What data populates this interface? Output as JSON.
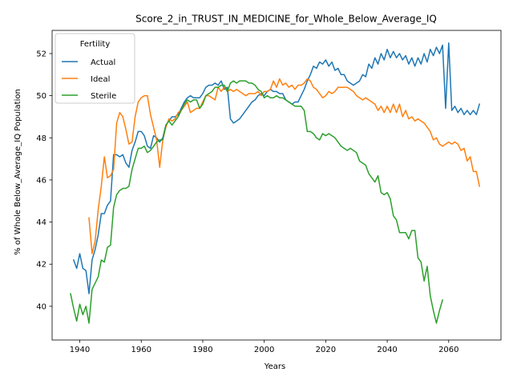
{
  "chart_data": {
    "type": "line",
    "title": "Score_2_in_TRUST_IN_MEDICINE_for_Whole_Below_Average_IQ",
    "xlabel": "Years",
    "ylabel": "% of Whole Below_Average_IQ Population",
    "xlim": [
      1931,
      2077
    ],
    "ylim": [
      38.4,
      53.1
    ],
    "x_ticks": [
      1940,
      1960,
      1980,
      2000,
      2020,
      2040,
      2060
    ],
    "y_ticks": [
      40,
      42,
      44,
      46,
      48,
      50,
      52
    ],
    "grid": false,
    "legend": {
      "title": "Fertility",
      "position": "top-left"
    },
    "series": [
      {
        "name": "Actual",
        "color": "#1f77b4",
        "x": [
          1938,
          1939,
          1940,
          1941,
          1942,
          1943,
          1944,
          1945,
          1946,
          1947,
          1948,
          1949,
          1950,
          1951,
          1952,
          1953,
          1954,
          1955,
          1956,
          1957,
          1958,
          1959,
          1960,
          1961,
          1962,
          1963,
          1964,
          1965,
          1966,
          1967,
          1968,
          1969,
          1970,
          1971,
          1972,
          1973,
          1974,
          1975,
          1976,
          1977,
          1978,
          1979,
          1980,
          1981,
          1982,
          1983,
          1984,
          1985,
          1986,
          1987,
          1988,
          1989,
          1990,
          1991,
          1992,
          1993,
          1994,
          1995,
          1996,
          1997,
          1998,
          1999,
          2000,
          2001,
          2002,
          2003,
          2004,
          2005,
          2006,
          2007,
          2008,
          2009,
          2010,
          2011,
          2012,
          2013,
          2014,
          2015,
          2016,
          2017,
          2018,
          2019,
          2020,
          2021,
          2022,
          2023,
          2024,
          2025,
          2026,
          2027,
          2028,
          2029,
          2030,
          2031,
          2032,
          2033,
          2034,
          2035,
          2036,
          2037,
          2038,
          2039,
          2040,
          2041,
          2042,
          2043,
          2044,
          2045,
          2046,
          2047,
          2048,
          2049,
          2050,
          2051,
          2052,
          2053,
          2054,
          2055,
          2056,
          2057,
          2058,
          2059,
          2060,
          2061,
          2062,
          2063,
          2064,
          2065,
          2066,
          2067,
          2068,
          2069,
          2070
        ],
        "values": [
          42.2,
          41.8,
          42.5,
          41.8,
          41.7,
          40.6,
          42.2,
          42.7,
          43.4,
          44.4,
          44.4,
          44.8,
          45.0,
          47.2,
          47.2,
          47.1,
          47.2,
          46.8,
          46.6,
          47.4,
          47.8,
          48.3,
          48.3,
          48.1,
          47.6,
          47.5,
          48.1,
          48.0,
          47.8,
          48.0,
          48.6,
          48.8,
          49.0,
          49.0,
          49.1,
          49.4,
          49.7,
          49.9,
          50.0,
          49.9,
          49.9,
          49.9,
          50.1,
          50.4,
          50.5,
          50.5,
          50.6,
          50.5,
          50.7,
          50.3,
          50.4,
          48.9,
          48.7,
          48.8,
          48.9,
          49.1,
          49.3,
          49.5,
          49.7,
          49.8,
          50.0,
          50.1,
          50.0,
          50.2,
          50.3,
          50.2,
          50.2,
          50.1,
          50.1,
          49.8,
          49.7,
          49.6,
          49.7,
          49.7,
          50.0,
          50.3,
          50.7,
          51.0,
          51.4,
          51.3,
          51.6,
          51.5,
          51.7,
          51.4,
          51.6,
          51.2,
          51.3,
          51.0,
          51.0,
          50.7,
          50.6,
          50.5,
          50.6,
          50.7,
          51.0,
          50.9,
          51.5,
          51.3,
          51.8,
          51.5,
          52.0,
          51.7,
          52.2,
          51.8,
          52.1,
          51.8,
          52.0,
          51.7,
          51.9,
          51.5,
          51.8,
          51.4,
          51.8,
          51.5,
          52.0,
          51.6,
          52.2,
          51.9,
          52.3,
          52.0,
          52.4,
          49.4,
          52.5,
          49.3,
          49.5,
          49.2,
          49.4,
          49.1,
          49.3,
          49.1,
          49.3,
          49.1,
          49.6
        ]
      },
      {
        "name": "Ideal",
        "color": "#ff7f0e",
        "x": [
          1943,
          1944,
          1945,
          1946,
          1947,
          1948,
          1949,
          1950,
          1951,
          1952,
          1953,
          1954,
          1955,
          1956,
          1957,
          1958,
          1959,
          1960,
          1961,
          1962,
          1963,
          1964,
          1965,
          1966,
          1967,
          1968,
          1969,
          1970,
          1971,
          1972,
          1973,
          1974,
          1975,
          1976,
          1977,
          1978,
          1979,
          1980,
          1981,
          1982,
          1983,
          1984,
          1985,
          1986,
          1987,
          1988,
          1989,
          1990,
          1991,
          1992,
          1993,
          1994,
          1995,
          1996,
          1997,
          1998,
          1999,
          2000,
          2001,
          2002,
          2003,
          2004,
          2005,
          2006,
          2007,
          2008,
          2009,
          2010,
          2011,
          2012,
          2013,
          2014,
          2015,
          2016,
          2017,
          2018,
          2019,
          2020,
          2021,
          2022,
          2023,
          2024,
          2025,
          2026,
          2027,
          2028,
          2029,
          2030,
          2031,
          2032,
          2033,
          2034,
          2035,
          2036,
          2037,
          2038,
          2039,
          2040,
          2041,
          2042,
          2043,
          2044,
          2045,
          2046,
          2047,
          2048,
          2049,
          2050,
          2051,
          2052,
          2053,
          2054,
          2055,
          2056,
          2057,
          2058,
          2059,
          2060,
          2061,
          2062,
          2063,
          2064,
          2065,
          2066,
          2067,
          2068,
          2069,
          2070
        ],
        "values": [
          44.2,
          42.5,
          43.1,
          44.6,
          45.7,
          47.1,
          46.1,
          46.2,
          46.5,
          48.7,
          49.2,
          49.0,
          48.4,
          47.7,
          47.8,
          49.0,
          49.7,
          49.9,
          50.0,
          50.0,
          49.1,
          48.5,
          47.9,
          46.6,
          47.9,
          48.5,
          48.9,
          48.8,
          48.9,
          49.2,
          49.3,
          49.5,
          49.7,
          49.2,
          49.3,
          49.4,
          49.4,
          49.7,
          50.0,
          50.0,
          49.9,
          49.8,
          50.4,
          50.2,
          50.4,
          50.2,
          50.3,
          50.2,
          50.3,
          50.2,
          50.1,
          50.0,
          50.1,
          50.1,
          50.1,
          50.2,
          50.0,
          50.2,
          50.2,
          50.3,
          50.7,
          50.4,
          50.8,
          50.5,
          50.6,
          50.4,
          50.5,
          50.3,
          50.5,
          50.5,
          50.6,
          50.8,
          50.7,
          50.4,
          50.3,
          50.1,
          49.9,
          50.0,
          50.2,
          50.1,
          50.2,
          50.4,
          50.4,
          50.4,
          50.4,
          50.3,
          50.2,
          50.0,
          49.9,
          49.8,
          49.9,
          49.8,
          49.7,
          49.6,
          49.3,
          49.5,
          49.2,
          49.5,
          49.2,
          49.6,
          49.2,
          49.6,
          49.0,
          49.3,
          48.9,
          49.0,
          48.8,
          48.9,
          48.8,
          48.7,
          48.5,
          48.3,
          47.9,
          48.0,
          47.7,
          47.6,
          47.7,
          47.8,
          47.7,
          47.8,
          47.7,
          47.4,
          47.5,
          46.9,
          47.1,
          46.4,
          46.4,
          45.7
        ]
      },
      {
        "name": "Sterile",
        "color": "#2ca02c",
        "x": [
          1937,
          1938,
          1939,
          1940,
          1941,
          1942,
          1943,
          1944,
          1945,
          1946,
          1947,
          1948,
          1949,
          1950,
          1951,
          1952,
          1953,
          1954,
          1955,
          1956,
          1957,
          1958,
          1959,
          1960,
          1961,
          1962,
          1963,
          1964,
          1965,
          1966,
          1967,
          1968,
          1969,
          1970,
          1971,
          1972,
          1973,
          1974,
          1975,
          1976,
          1977,
          1978,
          1979,
          1980,
          1981,
          1982,
          1983,
          1984,
          1985,
          1986,
          1987,
          1988,
          1989,
          1990,
          1991,
          1992,
          1993,
          1994,
          1995,
          1996,
          1997,
          1998,
          1999,
          2000,
          2001,
          2002,
          2003,
          2004,
          2005,
          2006,
          2007,
          2008,
          2009,
          2010,
          2011,
          2012,
          2013,
          2014,
          2015,
          2016,
          2017,
          2018,
          2019,
          2020,
          2021,
          2022,
          2023,
          2024,
          2025,
          2026,
          2027,
          2028,
          2029,
          2030,
          2031,
          2032,
          2033,
          2034,
          2035,
          2036,
          2037,
          2038,
          2039,
          2040,
          2041,
          2042,
          2043,
          2044,
          2045,
          2046,
          2047,
          2048,
          2049,
          2050,
          2051,
          2052,
          2053,
          2054,
          2055,
          2056,
          2057,
          2058
        ],
        "values": [
          40.6,
          39.9,
          39.3,
          40.1,
          39.6,
          40.0,
          39.2,
          40.8,
          41.1,
          41.4,
          42.2,
          42.1,
          42.8,
          42.9,
          44.7,
          45.3,
          45.5,
          45.6,
          45.6,
          45.7,
          46.5,
          47.0,
          47.5,
          47.5,
          47.6,
          47.3,
          47.4,
          47.6,
          47.8,
          47.9,
          47.9,
          48.6,
          48.8,
          48.6,
          48.8,
          49.0,
          49.3,
          49.6,
          49.8,
          49.7,
          49.8,
          49.8,
          49.4,
          49.6,
          50.0,
          50.1,
          50.2,
          50.4,
          50.4,
          50.5,
          50.5,
          50.2,
          50.6,
          50.7,
          50.6,
          50.7,
          50.7,
          50.7,
          50.6,
          50.6,
          50.5,
          50.3,
          50.2,
          49.9,
          50.0,
          49.9,
          49.9,
          50.0,
          49.9,
          49.9,
          49.8,
          49.7,
          49.6,
          49.5,
          49.5,
          49.5,
          49.3,
          48.3,
          48.3,
          48.2,
          48.0,
          47.9,
          48.2,
          48.1,
          48.2,
          48.1,
          48.0,
          47.8,
          47.6,
          47.5,
          47.4,
          47.5,
          47.4,
          47.3,
          46.9,
          46.8,
          46.7,
          46.3,
          46.1,
          45.9,
          46.2,
          45.4,
          45.3,
          45.4,
          45.1,
          44.3,
          44.1,
          43.5,
          43.5,
          43.5,
          43.2,
          43.6,
          43.6,
          42.3,
          42.1,
          41.2,
          41.9,
          40.5,
          39.8,
          39.2,
          39.8,
          40.3
        ]
      }
    ]
  }
}
